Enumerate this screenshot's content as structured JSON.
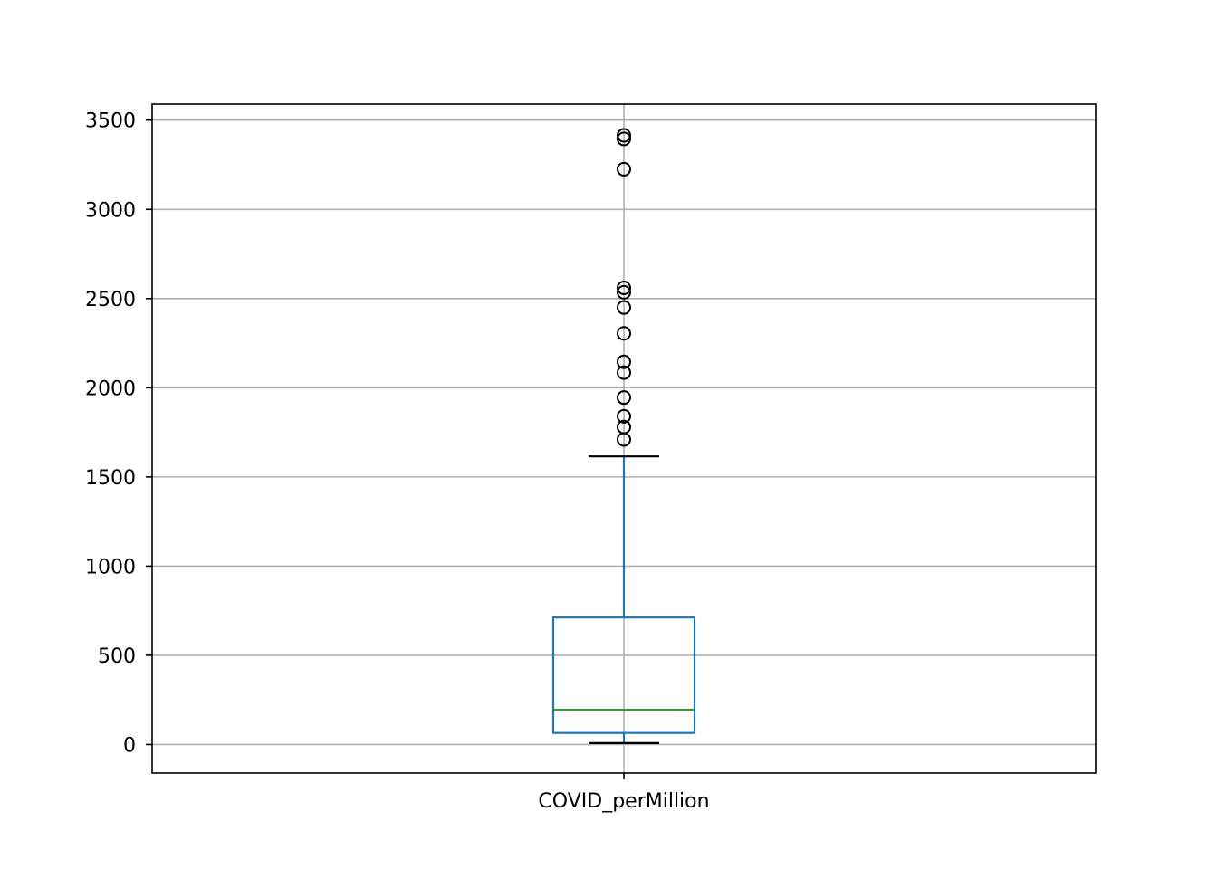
{
  "chart_data": {
    "type": "box",
    "title": "",
    "xlabel": "",
    "ylabel": "",
    "categories": [
      "COVID_perMillion"
    ],
    "ylim": [
      -160,
      3590
    ],
    "yticks": [
      0,
      500,
      1000,
      1500,
      2000,
      2500,
      3000,
      3500
    ],
    "ytick_labels": [
      "0",
      "500",
      "1000",
      "1500",
      "2000",
      "2500",
      "3000",
      "3500"
    ],
    "grid": true,
    "box": {
      "whisker_low": 8,
      "q1": 65,
      "median": 195,
      "q3": 712,
      "whisker_high": 1615
    },
    "outliers": [
      1710,
      1780,
      1840,
      1945,
      2085,
      2145,
      2305,
      2450,
      2535,
      2560,
      3225,
      3395,
      3415
    ],
    "colors": {
      "box": "#1f77b4",
      "median": "#2ca02c",
      "whisker_cap": "#000000",
      "outlier": "#000000",
      "grid": "#b0b0b0",
      "axes": "#000000"
    }
  }
}
